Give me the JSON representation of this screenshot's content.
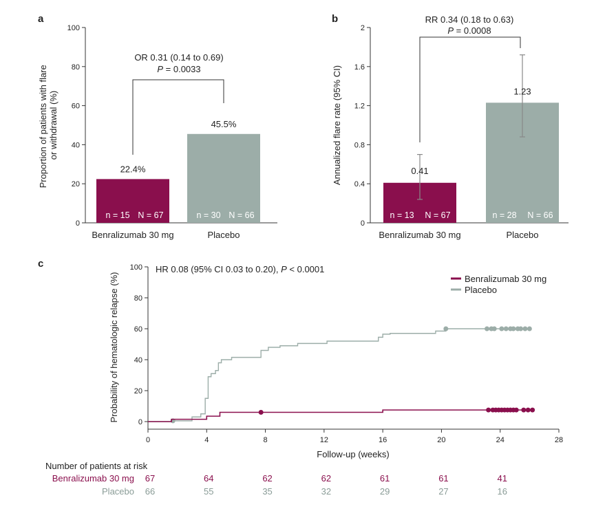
{
  "colors": {
    "benra": "#8a0f4d",
    "placebo": "#9cada8",
    "axis": "#333333"
  },
  "panel_labels": {
    "a": "a",
    "b": "b",
    "c": "c"
  },
  "chart_data": [
    {
      "type": "bar",
      "panel": "a",
      "categories": [
        "Benralizumab 30 mg",
        "Placebo"
      ],
      "values": [
        22.4,
        45.5
      ],
      "value_labels": [
        "22.4%",
        "45.5%"
      ],
      "bar_texts": [
        {
          "n": "n = 15",
          "N": "N = 67"
        },
        {
          "n": "n = 30",
          "N": "N = 66"
        }
      ],
      "ylabel_line1": "Proportion of patients with flare",
      "ylabel_line2": "or withdrawal (%)",
      "ylim": [
        0,
        100
      ],
      "yticks": [
        "0",
        "20",
        "40",
        "60",
        "80",
        "100"
      ],
      "annotation_line1": "OR 0.31 (0.14 to 0.69)",
      "annotation_p_label": "P",
      "annotation_p_value": " = 0.0033"
    },
    {
      "type": "bar",
      "panel": "b",
      "categories": [
        "Benralizumab 30 mg",
        "Placebo"
      ],
      "values": [
        0.41,
        1.23
      ],
      "ci": [
        [
          0.24,
          0.7
        ],
        [
          0.88,
          1.72
        ]
      ],
      "value_labels": [
        "0.41",
        "1.23"
      ],
      "bar_texts": [
        {
          "n": "n = 13",
          "N": "N = 67"
        },
        {
          "n": "n = 28",
          "N": "N = 66"
        }
      ],
      "ylabel": "Annualized flare rate (95% CI)",
      "ylim": [
        0,
        2
      ],
      "yticks": [
        "0",
        "0.4",
        "0.8",
        "1.2",
        "1.6",
        "2"
      ],
      "annotation_line1": "RR 0.34 (0.18 to 0.63)",
      "annotation_p_label": "P",
      "annotation_p_value": " = 0.0008"
    },
    {
      "type": "line",
      "panel": "c",
      "ylabel": "Probability of hematologic relapse (%)",
      "xlabel": "Follow-up (weeks)",
      "xlim": [
        0,
        28
      ],
      "ylim": [
        0,
        100
      ],
      "xticks": [
        "0",
        "4",
        "8",
        "12",
        "16",
        "20",
        "24",
        "28"
      ],
      "yticks": [
        "0",
        "20",
        "40",
        "60",
        "80",
        "100"
      ],
      "annotation_pre": "HR 0.08 (95% CI 0.03 to 0.20), ",
      "annotation_p_label": "P",
      "annotation_p_value": " < 0.0001",
      "legend_position": "top-right",
      "series": [
        {
          "name": "Benralizumab 30 mg",
          "steps": [
            [
              0,
              0
            ],
            [
              1.6,
              1.5
            ],
            [
              4,
              3.5
            ],
            [
              4.9,
              6
            ],
            [
              16,
              7.5
            ],
            [
              26.2,
              7.5
            ]
          ],
          "censored": [
            [
              7.7,
              6
            ],
            [
              23.2,
              7.5
            ],
            [
              23.5,
              7.5
            ],
            [
              23.7,
              7.5
            ],
            [
              23.9,
              7.5
            ],
            [
              24.1,
              7.5
            ],
            [
              24.3,
              7.5
            ],
            [
              24.5,
              7.5
            ],
            [
              24.7,
              7.5
            ],
            [
              24.9,
              7.5
            ],
            [
              25.1,
              7.5
            ],
            [
              25.6,
              7.5
            ],
            [
              25.9,
              7.5
            ],
            [
              26.2,
              7.5
            ]
          ]
        },
        {
          "name": "Placebo",
          "steps": [
            [
              0,
              0
            ],
            [
              1.7,
              0.5
            ],
            [
              3,
              3
            ],
            [
              3.6,
              5
            ],
            [
              3.9,
              15
            ],
            [
              4.1,
              29
            ],
            [
              4.3,
              31
            ],
            [
              4.6,
              33
            ],
            [
              4.8,
              38
            ],
            [
              5,
              40
            ],
            [
              5.7,
              41.5
            ],
            [
              7.7,
              46
            ],
            [
              8.2,
              48
            ],
            [
              9,
              49
            ],
            [
              10.2,
              50.5
            ],
            [
              12.2,
              52
            ],
            [
              15.7,
              54.5
            ],
            [
              16,
              56.5
            ],
            [
              16.5,
              57
            ],
            [
              19.6,
              58.5
            ],
            [
              20.3,
              60
            ],
            [
              26,
              60
            ]
          ],
          "censored": [
            [
              1.7,
              0.5
            ],
            [
              20.3,
              60
            ],
            [
              23.1,
              60
            ],
            [
              23.4,
              60
            ],
            [
              23.6,
              60
            ],
            [
              24.1,
              60
            ],
            [
              24.4,
              60
            ],
            [
              24.7,
              60
            ],
            [
              24.9,
              60
            ],
            [
              25.2,
              60
            ],
            [
              25.4,
              60
            ],
            [
              25.7,
              60
            ],
            [
              26.0,
              60
            ]
          ]
        }
      ]
    }
  ],
  "risk_table": {
    "title": "Number of patients at risk",
    "rows": [
      {
        "name": "Benralizumab 30 mg",
        "values": [
          "67",
          "64",
          "62",
          "62",
          "61",
          "61",
          "41"
        ]
      },
      {
        "name": "Placebo",
        "values": [
          "66",
          "55",
          "35",
          "32",
          "29",
          "27",
          "16"
        ]
      }
    ]
  }
}
